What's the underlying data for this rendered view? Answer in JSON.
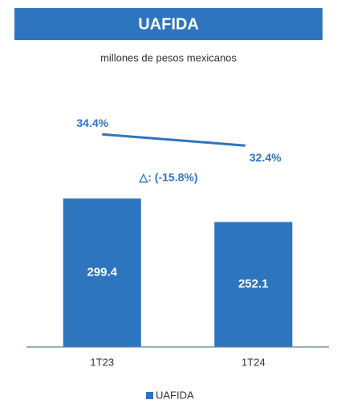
{
  "chart_data": {
    "type": "bar",
    "title": "UAFIDA",
    "subtitle": "millones de pesos mexicanos",
    "annotation": "△: (-15.8%)",
    "categories": [
      "1T23",
      "1T24"
    ],
    "series": [
      {
        "name": "UAFIDA",
        "color": "#2e75c0",
        "values": [
          299.4,
          252.1
        ]
      },
      {
        "type": "line",
        "color": "#2e75c0",
        "values": [
          34.4,
          32.4
        ],
        "value_labels": [
          "34.4%",
          "32.4%"
        ],
        "axis": "y2"
      }
    ],
    "ylim": [
      0,
      350
    ],
    "y2lim": [
      0,
      45
    ],
    "title_color": "#2e75c0"
  }
}
